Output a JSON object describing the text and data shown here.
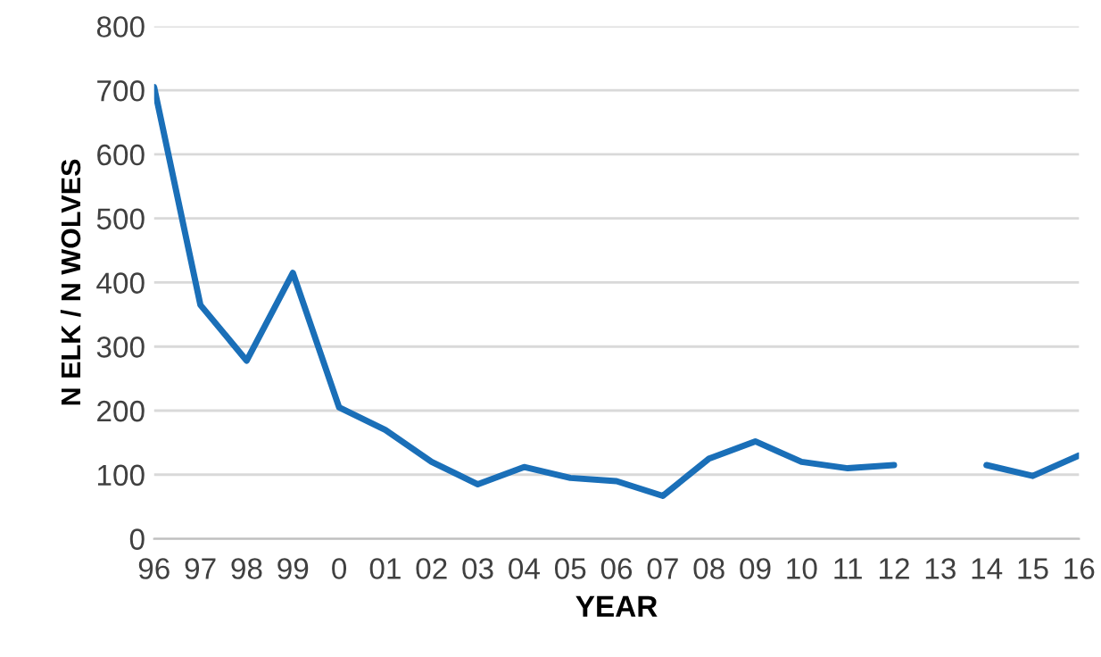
{
  "chart_data": {
    "type": "line",
    "xlabel": "YEAR",
    "ylabel": "N ELK / N WOLVES",
    "categories": [
      "96",
      "97",
      "98",
      "99",
      "0",
      "01",
      "02",
      "03",
      "04",
      "05",
      "06",
      "07",
      "08",
      "09",
      "10",
      "11",
      "12",
      "13",
      "14",
      "15",
      "16"
    ],
    "series": [
      {
        "color": "#1a6fb8",
        "values": [
          705,
          365,
          278,
          415,
          205,
          170,
          120,
          85,
          112,
          95,
          90,
          67,
          125,
          152,
          120,
          110,
          115,
          null,
          115,
          98,
          130
        ]
      }
    ],
    "ylim": [
      0,
      800
    ],
    "yticks": [
      0,
      100,
      200,
      300,
      400,
      500,
      600,
      700,
      800
    ],
    "grid": "y",
    "line_style": "solid",
    "marker": "none"
  }
}
